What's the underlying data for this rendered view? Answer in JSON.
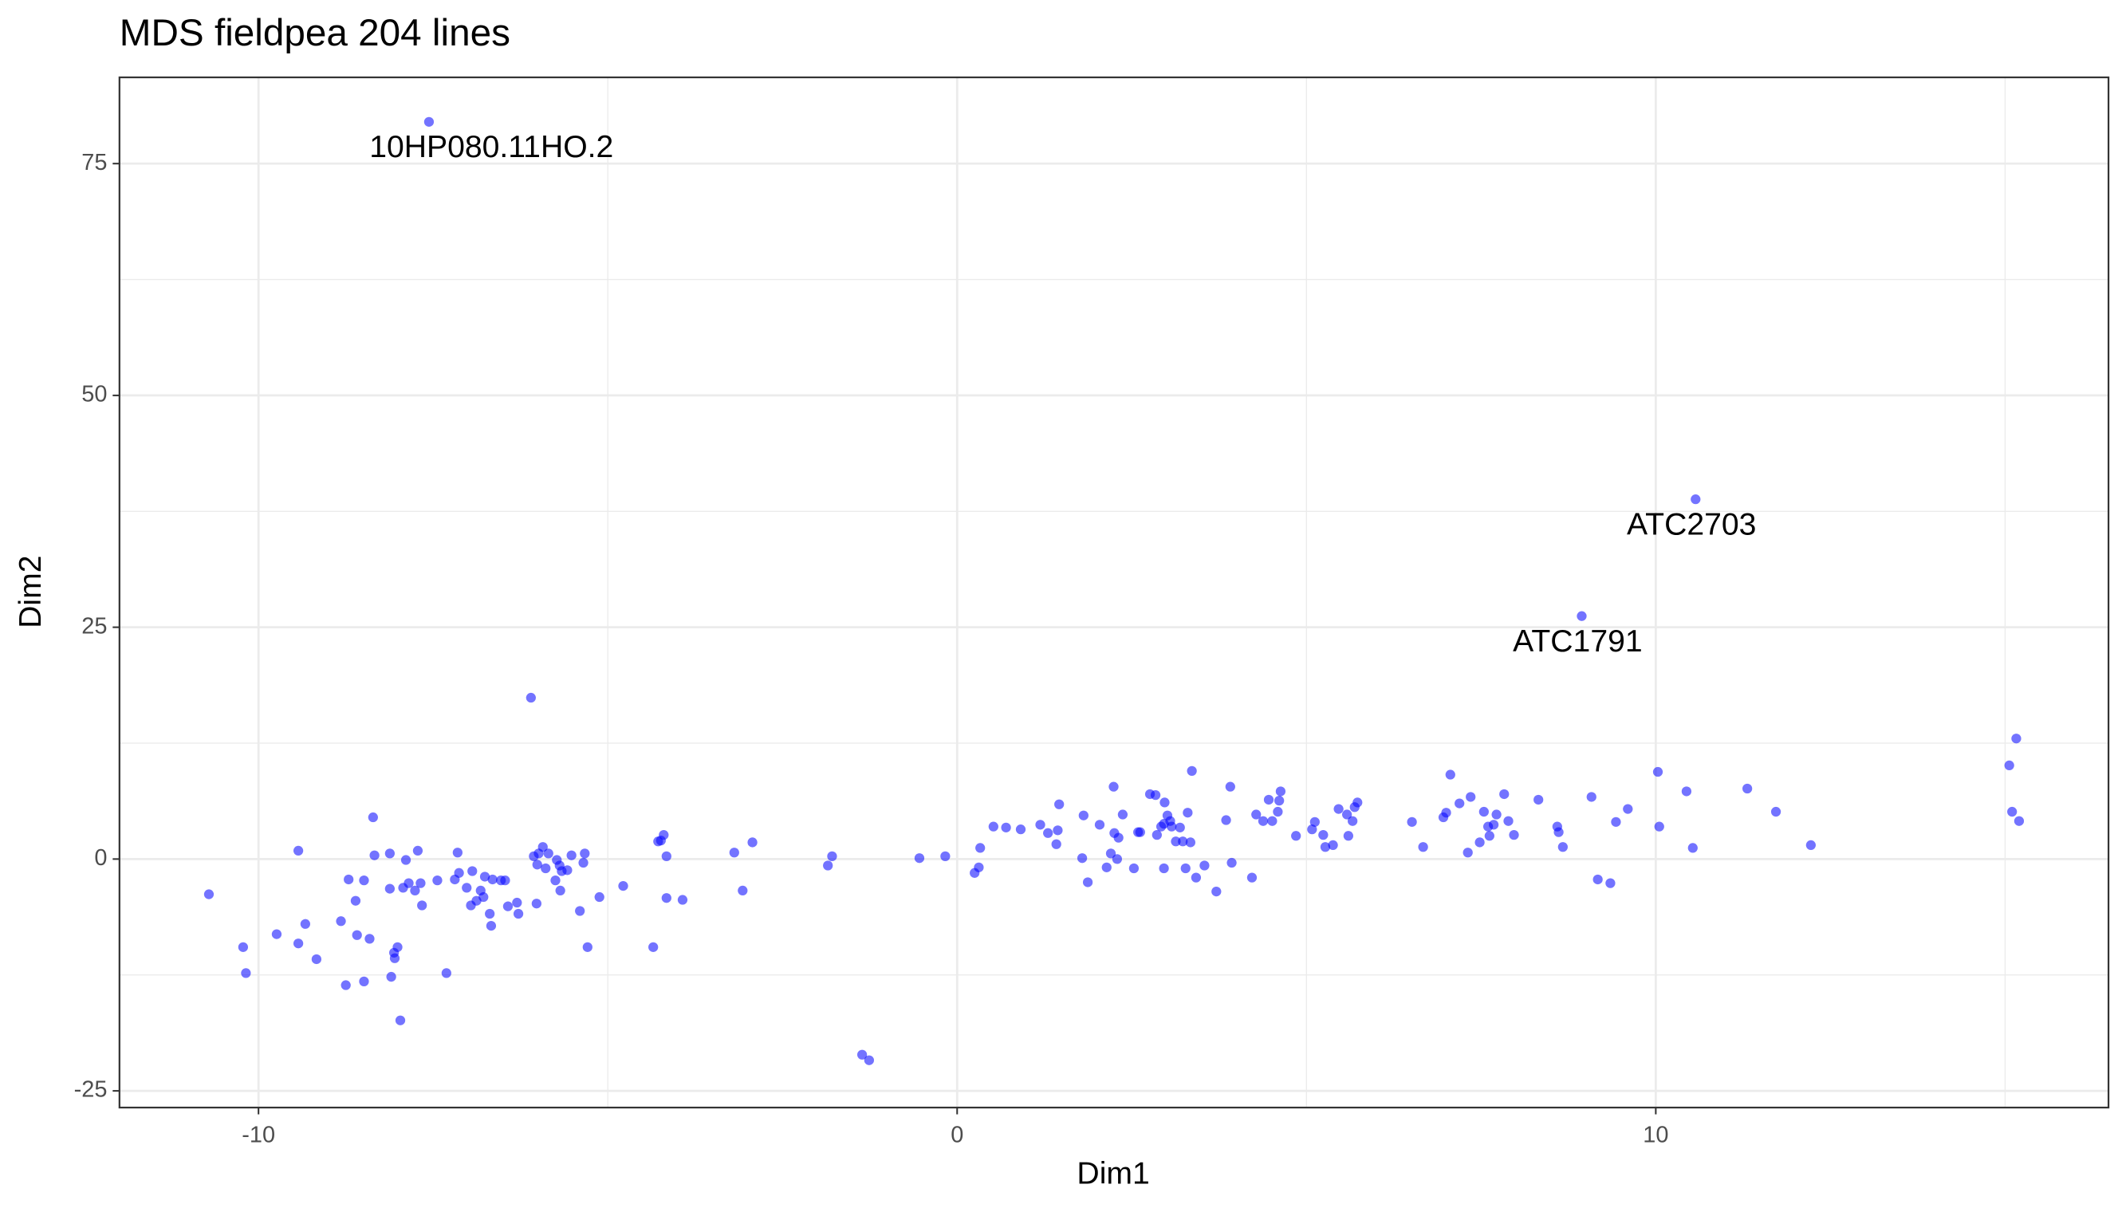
{
  "chart_data": {
    "type": "scatter",
    "title": "MDS fieldpea 204 lines",
    "xlabel": "Dim1",
    "ylabel": "Dim2",
    "xlim": [
      -11.99,
      16.48
    ],
    "ylim": [
      -26.8,
      84.3
    ],
    "xticks": [
      -10,
      0,
      10
    ],
    "yticks": [
      -25,
      0,
      25,
      50,
      75
    ],
    "xminor": [
      -5,
      5,
      15
    ],
    "yminor": [
      -12.5,
      12.5,
      37.5,
      62.5
    ],
    "grid": true,
    "color": "#0000ff",
    "x": [
      -10.71,
      -10.22,
      -10.18,
      -9.74,
      -9.43,
      -9.43,
      -9.33,
      -9.17,
      -8.82,
      -8.75,
      -8.71,
      -8.61,
      -8.59,
      -8.49,
      -8.49,
      -8.41,
      -8.36,
      -8.34,
      -8.12,
      -8.12,
      -8.1,
      -8.06,
      -8.05,
      -8.01,
      -7.97,
      -7.93,
      -7.89,
      -7.85,
      -7.76,
      -7.72,
      -7.68,
      -7.66,
      -7.44,
      -7.31,
      -7.19,
      -7.15,
      -7.13,
      -7.02,
      -6.96,
      -6.94,
      -6.88,
      -6.82,
      -6.78,
      -6.76,
      -6.69,
      -6.67,
      -6.65,
      -6.53,
      -6.47,
      -6.43,
      -6.3,
      -6.28,
      -6.1,
      -6.06,
      -6.02,
      -6.01,
      -5.99,
      -5.93,
      -5.89,
      -5.85,
      -5.75,
      -5.73,
      -5.69,
      -5.68,
      -5.66,
      -5.58,
      -5.52,
      -5.4,
      -5.35,
      -5.33,
      -5.29,
      -5.12,
      -4.78,
      -4.35,
      -4.28,
      -4.24,
      -4.2,
      -4.16,
      -4.16,
      -3.93,
      -3.19,
      -3.07,
      -2.93,
      -1.85,
      -1.79,
      -1.36,
      -1.26,
      -0.54,
      -0.17,
      0.25,
      0.31,
      0.33,
      0.52,
      0.7,
      0.91,
      1.19,
      1.3,
      1.42,
      1.44,
      1.46,
      1.79,
      1.81,
      1.87,
      2.04,
      2.14,
      2.2,
      2.24,
      2.25,
      2.29,
      2.31,
      2.37,
      2.53,
      2.59,
      2.62,
      2.76,
      2.84,
      2.86,
      2.92,
      2.96,
      2.96,
      2.97,
      3.01,
      3.05,
      3.07,
      3.13,
      3.19,
      3.23,
      3.27,
      3.3,
      3.34,
      3.36,
      3.42,
      3.54,
      3.71,
      3.85,
      3.91,
      3.93,
      4.22,
      4.28,
      4.38,
      4.46,
      4.51,
      4.59,
      4.61,
      4.63,
      4.85,
      5.08,
      5.12,
      5.24,
      5.27,
      5.38,
      5.46,
      5.58,
      5.6,
      5.66,
      5.69,
      5.73,
      6.51,
      6.67,
      6.96,
      7.0,
      7.06,
      7.19,
      7.31,
      7.35,
      7.48,
      7.54,
      7.6,
      7.62,
      7.68,
      7.72,
      7.83,
      7.89,
      7.97,
      8.32,
      8.59,
      8.61,
      8.67,
      9.08,
      9.17,
      9.35,
      9.43,
      9.6,
      10.03,
      10.05,
      10.44,
      10.53,
      11.31,
      11.72,
      12.22,
      15.06,
      15.1,
      15.16,
      15.2
    ],
    "y": [
      -3.8,
      -9.5,
      -12.3,
      -8.1,
      0.9,
      -9.1,
      -7.0,
      -10.8,
      -6.7,
      -13.6,
      -2.2,
      -4.5,
      -8.2,
      -2.3,
      -13.2,
      -8.6,
      4.5,
      0.4,
      0.6,
      -3.2,
      -12.7,
      -10.1,
      -10.7,
      -9.5,
      -17.4,
      -3.1,
      -0.1,
      -2.6,
      -3.4,
      0.9,
      -2.6,
      -5.0,
      -2.3,
      -12.3,
      -2.2,
      0.7,
      -1.5,
      -3.1,
      -5.0,
      -1.3,
      -4.5,
      -3.4,
      -4.1,
      -1.9,
      -5.9,
      -7.2,
      -2.2,
      -2.3,
      -2.3,
      -5.1,
      -4.7,
      -5.9,
      17.4,
      0.3,
      -4.8,
      -0.6,
      0.6,
      1.3,
      -1.0,
      0.6,
      -2.3,
      -0.1,
      -0.7,
      -3.4,
      -1.3,
      -1.2,
      0.4,
      -5.6,
      -0.4,
      0.6,
      -9.5,
      -4.1,
      -2.9,
      -9.5,
      1.9,
      2.0,
      2.6,
      -4.2,
      0.3,
      -4.4,
      0.7,
      -3.4,
      1.8,
      -0.7,
      0.3,
      -21.1,
      -21.7,
      0.1,
      0.3,
      -1.5,
      -0.9,
      1.2,
      3.5,
      3.4,
      3.2,
      3.7,
      2.8,
      1.6,
      3.1,
      5.9,
      0.1,
      4.7,
      -2.5,
      3.7,
      -0.9,
      0.6,
      7.8,
      2.8,
      0.0,
      2.3,
      4.8,
      -1.0,
      2.9,
      2.9,
      7.0,
      6.9,
      2.6,
      3.5,
      -1.0,
      3.8,
      6.1,
      4.7,
      4.1,
      3.5,
      1.9,
      3.4,
      1.9,
      -1.0,
      5.0,
      1.8,
      9.5,
      -2.0,
      -0.7,
      -3.5,
      4.2,
      7.8,
      -0.4,
      -2.0,
      4.8,
      4.1,
      6.4,
      4.1,
      5.1,
      6.3,
      7.3,
      2.5,
      3.2,
      4.0,
      2.6,
      1.3,
      1.5,
      5.4,
      4.8,
      2.5,
      4.1,
      5.6,
      6.1,
      4.0,
      1.3,
      4.5,
      5.0,
      9.1,
      6.0,
      0.7,
      6.7,
      1.8,
      5.1,
      3.5,
      2.5,
      3.7,
      4.8,
      7.0,
      4.1,
      2.6,
      6.4,
      3.5,
      2.9,
      1.3,
      6.7,
      -2.2,
      -2.6,
      4.0,
      5.4,
      9.4,
      3.5,
      7.3,
      1.2,
      7.6,
      5.1,
      1.5,
      10.1,
      5.1,
      13.0,
      4.1
    ],
    "labeled_points": [
      {
        "label": "10HP080.11HO.2",
        "x": -7.56,
        "y": 79.5
      },
      {
        "label": "ATC2703",
        "x": 10.57,
        "y": 38.8
      },
      {
        "label": "ATC1791",
        "x": 8.94,
        "y": 26.2
      }
    ]
  }
}
